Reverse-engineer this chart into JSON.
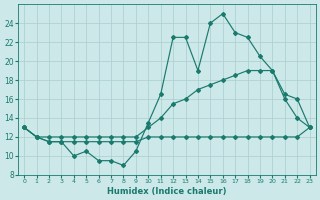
{
  "xlabel": "Humidex (Indice chaleur)",
  "x": [
    0,
    1,
    2,
    3,
    4,
    5,
    6,
    7,
    8,
    9,
    10,
    11,
    12,
    13,
    14,
    15,
    16,
    17,
    18,
    19,
    20,
    21,
    22,
    23
  ],
  "line_jagged": [
    13,
    12,
    11.5,
    11.5,
    10,
    10.5,
    9.5,
    9.5,
    9,
    10.5,
    13.5,
    16.5,
    22.5,
    22.5,
    19,
    24,
    25,
    23,
    22.5,
    20.5,
    19,
    16,
    14,
    13
  ],
  "line_upper": [
    13,
    12,
    12,
    12,
    12,
    12,
    12,
    12,
    12,
    12,
    13,
    14,
    15.5,
    16,
    17,
    17.5,
    18,
    18.5,
    19,
    19,
    19,
    16.5,
    16,
    13
  ],
  "line_lower": [
    13,
    12,
    11.5,
    11.5,
    11.5,
    11.5,
    11.5,
    11.5,
    11.5,
    11.5,
    12,
    12,
    12,
    12,
    12,
    12,
    12,
    12,
    12,
    12,
    12,
    12,
    12,
    13
  ],
  "line_color": "#1a7a6e",
  "bg_color": "#cce8e8",
  "grid_color": "#aacece",
  "ylim": [
    8,
    26
  ],
  "xlim": [
    -0.5,
    23.5
  ],
  "yticks": [
    8,
    10,
    12,
    14,
    16,
    18,
    20,
    22,
    24
  ],
  "xticks": [
    0,
    1,
    2,
    3,
    4,
    5,
    6,
    7,
    8,
    9,
    10,
    11,
    12,
    13,
    14,
    15,
    16,
    17,
    18,
    19,
    20,
    21,
    22,
    23
  ]
}
